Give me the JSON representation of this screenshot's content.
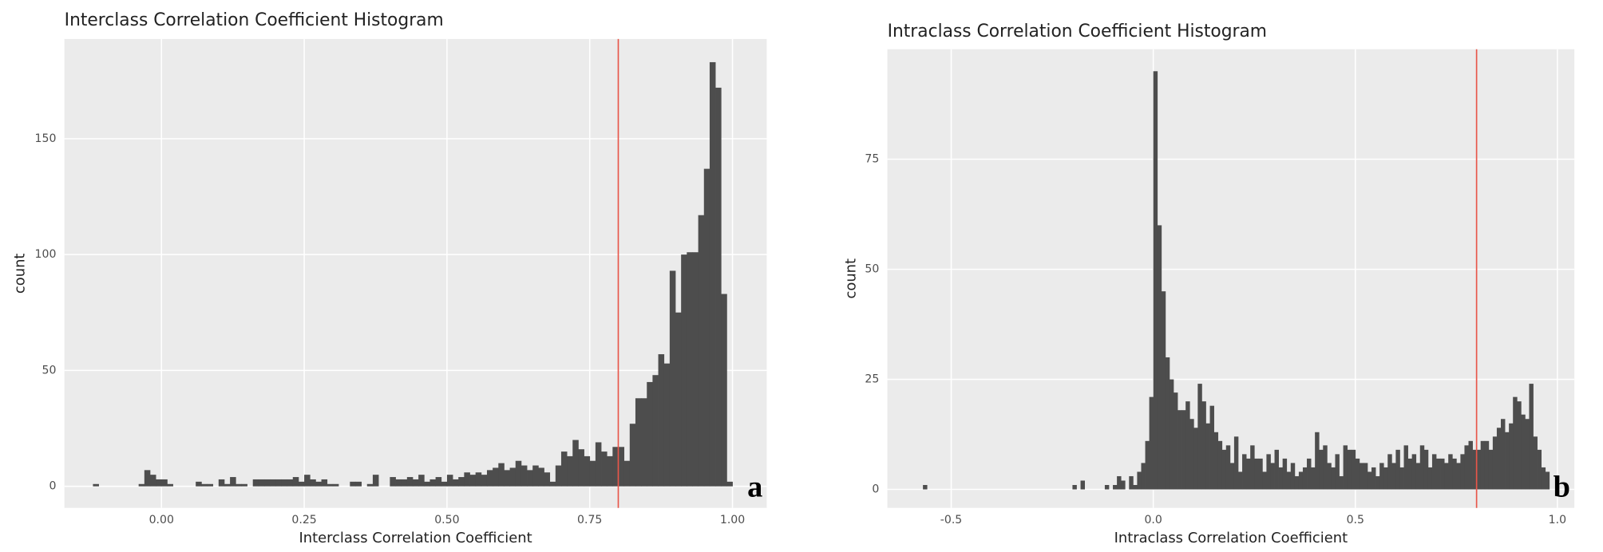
{
  "chart_data": [
    {
      "type": "histogram",
      "title": "Interclass Correlation Coefficient Histogram",
      "x_label": "Interclass Correlation Coefficient",
      "y_label": "count",
      "panel_label": "a",
      "color": "#4d4d4d",
      "vline": 0.8,
      "vline_color": "#e8564a",
      "grid": true,
      "xlim": [
        -0.17,
        1.06
      ],
      "ylim": [
        -9.3,
        193
      ],
      "xticks": [
        {
          "value": 0,
          "label": "0.00"
        },
        {
          "value": 0.25,
          "label": "0.25"
        },
        {
          "value": 0.5,
          "label": "0.50"
        },
        {
          "value": 0.75,
          "label": "0.75"
        },
        {
          "value": 1,
          "label": "1.00"
        }
      ],
      "yticks": [
        0,
        50,
        100,
        150
      ],
      "bins": [
        -0.12,
        -0.11,
        -0.1,
        -0.09,
        -0.08,
        -0.07,
        -0.06,
        -0.05,
        -0.04,
        -0.03,
        -0.02,
        -0.01,
        0,
        0.01,
        0.02,
        0.03,
        0.04,
        0.05,
        0.06,
        0.07,
        0.08,
        0.09,
        0.1,
        0.11,
        0.12,
        0.13,
        0.14,
        0.15,
        0.16,
        0.17,
        0.18,
        0.19,
        0.2,
        0.21,
        0.22,
        0.23,
        0.24,
        0.25,
        0.26,
        0.27,
        0.28,
        0.29,
        0.3,
        0.31,
        0.32,
        0.33,
        0.34,
        0.35,
        0.36,
        0.37,
        0.38,
        0.39,
        0.4,
        0.41,
        0.42,
        0.43,
        0.44,
        0.45,
        0.46,
        0.47,
        0.48,
        0.49,
        0.5,
        0.51,
        0.52,
        0.53,
        0.54,
        0.55,
        0.56,
        0.57,
        0.58,
        0.59,
        0.6,
        0.61,
        0.62,
        0.63,
        0.64,
        0.65,
        0.66,
        0.67,
        0.68,
        0.69,
        0.7,
        0.71,
        0.72,
        0.73,
        0.74,
        0.75,
        0.76,
        0.77,
        0.78,
        0.79,
        0.8,
        0.81,
        0.82,
        0.83,
        0.84,
        0.85,
        0.86,
        0.87,
        0.88,
        0.89,
        0.9,
        0.91,
        0.92,
        0.93,
        0.94,
        0.95,
        0.96,
        0.97,
        0.98,
        0.99,
        1
      ],
      "values": [
        1,
        0,
        0,
        0,
        0,
        0,
        0,
        0,
        1,
        7,
        5,
        3,
        3,
        1,
        0,
        0,
        0,
        0,
        2,
        1,
        1,
        0,
        3,
        1,
        4,
        1,
        1,
        0,
        3,
        3,
        3,
        3,
        3,
        3,
        3,
        4,
        2,
        5,
        3,
        2,
        3,
        1,
        1,
        0,
        0,
        2,
        2,
        0,
        1,
        5,
        0,
        0,
        4,
        3,
        3,
        4,
        3,
        5,
        2,
        3,
        4,
        2,
        5,
        3,
        4,
        6,
        5,
        6,
        5,
        7,
        8,
        10,
        7,
        8,
        11,
        9,
        7,
        9,
        8,
        6,
        2,
        9,
        15,
        13,
        20,
        16,
        13,
        11,
        19,
        15,
        13,
        17,
        17,
        11,
        27,
        38,
        38,
        45,
        48,
        57,
        53,
        93,
        75,
        100,
        101,
        101,
        117,
        137,
        183,
        172,
        83,
        2
      ]
    },
    {
      "type": "histogram",
      "title": "Intraclass Correlation Coefficient Histogram",
      "x_label": "Intraclass Correlation Coefficient",
      "y_label": "count",
      "panel_label": "b",
      "color": "#4d4d4d",
      "vline": 0.8,
      "vline_color": "#e8564a",
      "grid": true,
      "xlim": [
        -0.658,
        1.042
      ],
      "ylim": [
        -4.2,
        100
      ],
      "xticks": [
        -0.5,
        {
          "value": 0,
          "label": "0.0"
        },
        0.5,
        {
          "value": 1,
          "label": "1.0"
        }
      ],
      "yticks": [
        0,
        25,
        50,
        75
      ],
      "bins": [
        -0.57,
        -0.56,
        -0.55,
        -0.54,
        -0.53,
        -0.52,
        -0.51,
        -0.5,
        -0.49,
        -0.48,
        -0.47,
        -0.46,
        -0.45,
        -0.44,
        -0.43,
        -0.42,
        -0.41,
        -0.4,
        -0.39,
        -0.38,
        -0.37,
        -0.36,
        -0.35,
        -0.34,
        -0.33,
        -0.32,
        -0.31,
        -0.3,
        -0.29,
        -0.28,
        -0.27,
        -0.26,
        -0.25,
        -0.24,
        -0.23,
        -0.22,
        -0.21,
        -0.2,
        -0.19,
        -0.18,
        -0.17,
        -0.16,
        -0.15,
        -0.14,
        -0.13,
        -0.12,
        -0.11,
        -0.1,
        -0.09,
        -0.08,
        -0.07,
        -0.06,
        -0.05,
        -0.04,
        -0.03,
        -0.02,
        -0.01,
        0,
        0.01,
        0.02,
        0.03,
        0.04,
        0.05,
        0.06,
        0.07,
        0.08,
        0.09,
        0.1,
        0.11,
        0.12,
        0.13,
        0.14,
        0.15,
        0.16,
        0.17,
        0.18,
        0.19,
        0.2,
        0.21,
        0.22,
        0.23,
        0.24,
        0.25,
        0.26,
        0.27,
        0.28,
        0.29,
        0.3,
        0.31,
        0.32,
        0.33,
        0.34,
        0.35,
        0.36,
        0.37,
        0.38,
        0.39,
        0.4,
        0.41,
        0.42,
        0.43,
        0.44,
        0.45,
        0.46,
        0.47,
        0.48,
        0.49,
        0.5,
        0.51,
        0.52,
        0.53,
        0.54,
        0.55,
        0.56,
        0.57,
        0.58,
        0.59,
        0.6,
        0.61,
        0.62,
        0.63,
        0.64,
        0.65,
        0.66,
        0.67,
        0.68,
        0.69,
        0.7,
        0.71,
        0.72,
        0.73,
        0.74,
        0.75,
        0.76,
        0.77,
        0.78,
        0.79,
        0.8,
        0.81,
        0.82,
        0.83,
        0.84,
        0.85,
        0.86,
        0.87,
        0.88,
        0.89,
        0.9,
        0.91,
        0.92,
        0.93,
        0.94,
        0.95,
        0.96,
        0.97,
        0.98
      ],
      "values": [
        1,
        0,
        0,
        0,
        0,
        0,
        0,
        0,
        0,
        0,
        0,
        0,
        0,
        0,
        0,
        0,
        0,
        0,
        0,
        0,
        0,
        0,
        0,
        0,
        0,
        0,
        0,
        0,
        0,
        0,
        0,
        0,
        0,
        0,
        0,
        0,
        0,
        1,
        0,
        2,
        0,
        0,
        0,
        0,
        0,
        1,
        0,
        1,
        3,
        2,
        0,
        3,
        1,
        4,
        6,
        11,
        21,
        95,
        60,
        45,
        30,
        25,
        22,
        18,
        18,
        20,
        16,
        14,
        24,
        20,
        15,
        19,
        13,
        11,
        9,
        10,
        6,
        12,
        4,
        8,
        7,
        10,
        7,
        7,
        4,
        8,
        6,
        9,
        5,
        7,
        4,
        6,
        3,
        4,
        5,
        7,
        5,
        13,
        9,
        10,
        6,
        5,
        8,
        3,
        10,
        9,
        9,
        7,
        6,
        6,
        4,
        5,
        3,
        6,
        5,
        8,
        6,
        9,
        5,
        10,
        7,
        8,
        6,
        10,
        9,
        5,
        8,
        7,
        7,
        6,
        8,
        7,
        6,
        8,
        10,
        11,
        9,
        9,
        11,
        11,
        9,
        12,
        14,
        16,
        13,
        15,
        21,
        20,
        17,
        16,
        24,
        12,
        9,
        5,
        4
      ]
    }
  ]
}
